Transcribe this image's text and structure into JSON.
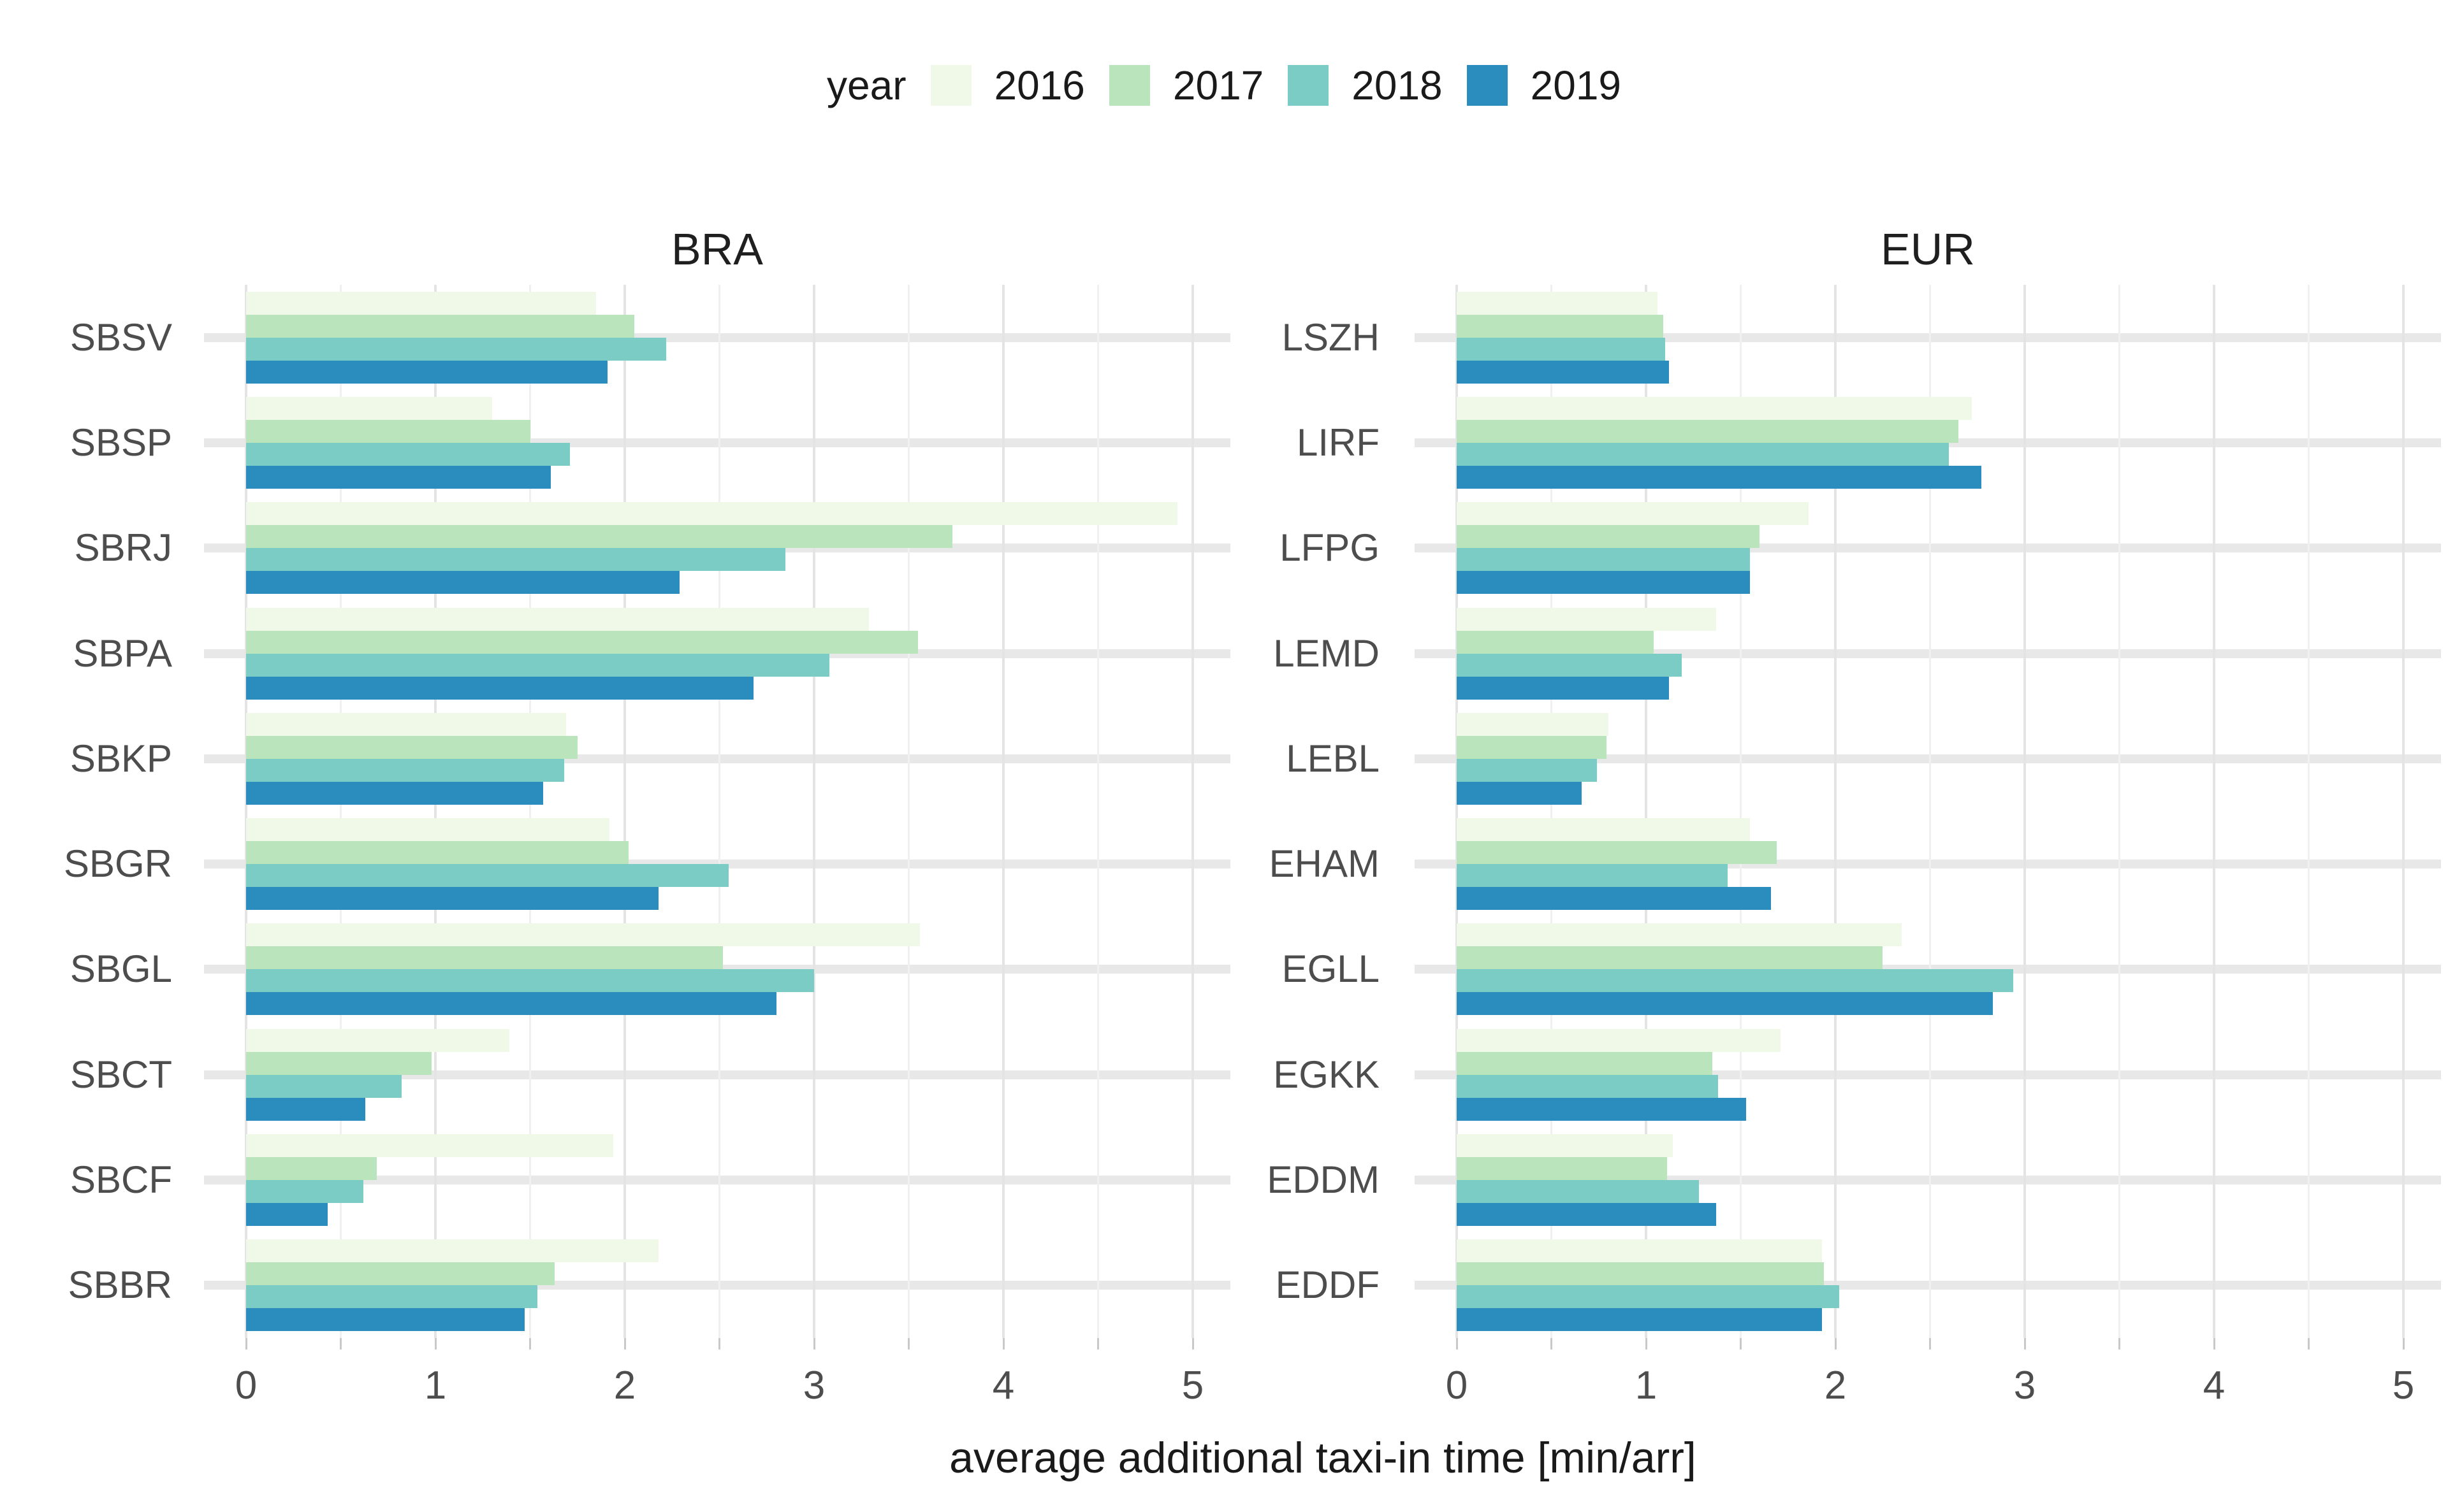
{
  "legend": {
    "title": "year",
    "items": [
      {
        "label": "2016",
        "color": "#F0F9E8"
      },
      {
        "label": "2017",
        "color": "#BAE4BC"
      },
      {
        "label": "2018",
        "color": "#7BCCC4"
      },
      {
        "label": "2019",
        "color": "#2B8CBE"
      }
    ]
  },
  "x_axis": {
    "title": "average additional taxi-in time [min/arr]",
    "tick_labels": [
      "0",
      "1",
      "2",
      "3",
      "4",
      "5"
    ]
  },
  "chart_data": {
    "type": "bar",
    "orientation": "horizontal",
    "grouping": "grouped",
    "legend_title": "year",
    "legend_position": "top",
    "grid": true,
    "xlabel": "average additional taxi-in time [min/arr]",
    "xlim": [
      0,
      5
    ],
    "xticks": [
      0,
      1,
      2,
      3,
      4,
      5
    ],
    "series_order_top_to_bottom": [
      "2016",
      "2017",
      "2018",
      "2019"
    ],
    "facets": [
      {
        "title": "BRA",
        "categories": [
          "SBSV",
          "SBSP",
          "SBRJ",
          "SBPA",
          "SBKP",
          "SBGR",
          "SBGL",
          "SBCT",
          "SBCF",
          "SBBR"
        ],
        "series": [
          {
            "name": "2016",
            "color": "#F0F9E8",
            "values": [
              1.85,
              1.3,
              4.92,
              3.29,
              1.69,
              1.92,
              3.56,
              1.39,
              1.94,
              2.18
            ]
          },
          {
            "name": "2017",
            "color": "#BAE4BC",
            "values": [
              2.05,
              1.5,
              3.73,
              3.55,
              1.75,
              2.02,
              2.52,
              0.98,
              0.69,
              1.63
            ]
          },
          {
            "name": "2018",
            "color": "#7BCCC4",
            "values": [
              2.22,
              1.71,
              2.85,
              3.08,
              1.68,
              2.55,
              3.0,
              0.82,
              0.62,
              1.54
            ]
          },
          {
            "name": "2019",
            "color": "#2B8CBE",
            "values": [
              1.91,
              1.61,
              2.29,
              2.68,
              1.57,
              2.18,
              2.8,
              0.63,
              0.43,
              1.47
            ]
          }
        ]
      },
      {
        "title": "EUR",
        "categories": [
          "LSZH",
          "LIRF",
          "LFPG",
          "LEMD",
          "LEBL",
          "EHAM",
          "EGLL",
          "EGKK",
          "EDDM",
          "EDDF"
        ],
        "series": [
          {
            "name": "2016",
            "color": "#F0F9E8",
            "values": [
              1.06,
              2.72,
              1.86,
              1.37,
              0.8,
              1.55,
              2.35,
              1.71,
              1.14,
              1.93
            ]
          },
          {
            "name": "2017",
            "color": "#BAE4BC",
            "values": [
              1.09,
              2.65,
              1.6,
              1.04,
              0.79,
              1.69,
              2.25,
              1.35,
              1.11,
              1.94
            ]
          },
          {
            "name": "2018",
            "color": "#7BCCC4",
            "values": [
              1.1,
              2.6,
              1.55,
              1.19,
              0.74,
              1.43,
              2.94,
              1.38,
              1.28,
              2.02
            ]
          },
          {
            "name": "2019",
            "color": "#2B8CBE",
            "values": [
              1.12,
              2.77,
              1.55,
              1.12,
              0.66,
              1.66,
              2.83,
              1.53,
              1.37,
              1.93
            ]
          }
        ]
      }
    ]
  }
}
